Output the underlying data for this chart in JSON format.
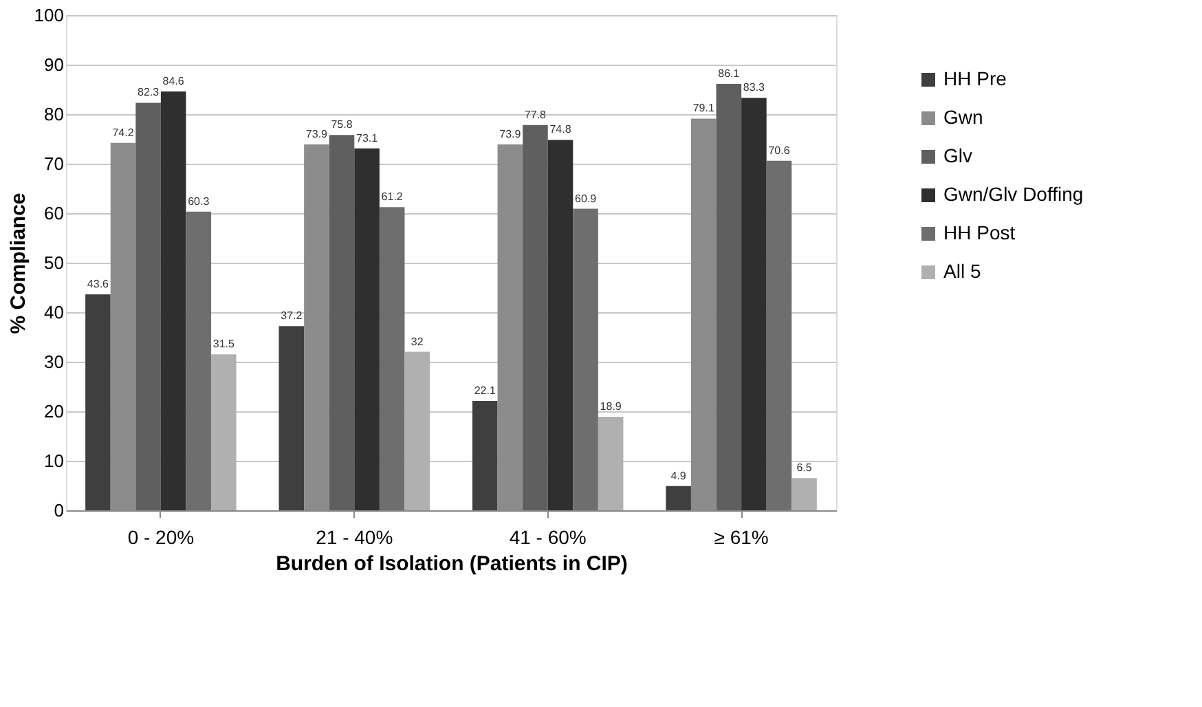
{
  "chart_data": {
    "type": "bar",
    "xlabel": "Burden of Isolation (Patients in CIP)",
    "ylabel": "% Compliance",
    "categories": [
      "0 - 20%",
      "21 - 40%",
      "41 - 60%",
      "≥ 61%"
    ],
    "series": [
      {
        "name": "HH Pre",
        "color": "#3f3f3f",
        "values": [
          43.6,
          37.2,
          22.1,
          4.9
        ]
      },
      {
        "name": "Gwn",
        "color": "#8c8c8c",
        "values": [
          74.2,
          73.9,
          73.9,
          79.1
        ]
      },
      {
        "name": "Glv",
        "color": "#5f5f5f",
        "values": [
          82.3,
          75.8,
          77.8,
          86.1
        ]
      },
      {
        "name": "Gwn/Glv Doffing",
        "color": "#2f2f2f",
        "values": [
          84.6,
          73.1,
          74.8,
          83.3
        ]
      },
      {
        "name": "HH Post",
        "color": "#6e6e6e",
        "values": [
          60.3,
          61.2,
          60.9,
          70.6
        ]
      },
      {
        "name": "All 5",
        "color": "#b0b0b0",
        "values": [
          31.5,
          32,
          18.9,
          6.5
        ]
      }
    ],
    "ylim": [
      0,
      100
    ],
    "yticks": [
      0,
      10,
      20,
      30,
      40,
      50,
      60,
      70,
      80,
      90,
      100
    ],
    "grid": "y",
    "legend": "right",
    "data_labels": true
  }
}
